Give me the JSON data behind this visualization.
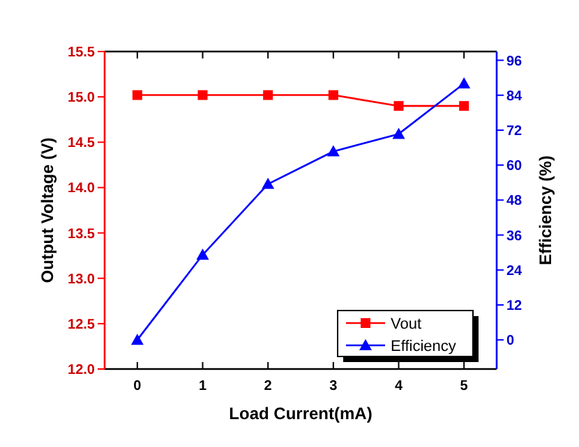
{
  "chart_data": {
    "type": "line",
    "xlabel": "Load Current(mA)",
    "ylabel": "Output Voltage (V)",
    "y2label": "Efficiency (%)",
    "x": [
      0,
      1,
      2,
      3,
      4,
      5
    ],
    "series": [
      {
        "name": "Vout",
        "color": "#ff0000",
        "marker": "square",
        "values": [
          15.02,
          15.02,
          15.02,
          15.02,
          14.9,
          14.9
        ]
      },
      {
        "name": "Efficiency",
        "color": "#0000ff",
        "marker": "triangle",
        "axis": "y2",
        "values": [
          0,
          29.2,
          53.5,
          64.7,
          70.7,
          88
        ]
      }
    ],
    "xlim": [
      -0.5,
      5.5
    ],
    "xticks": [
      0,
      1,
      2,
      3,
      4,
      5
    ],
    "ylim": [
      12.0,
      15.5
    ],
    "yticks": [
      {
        "value": 12,
        "label": "12.0"
      },
      {
        "value": 12.5,
        "label": "12.5"
      },
      {
        "value": 13,
        "label": "13.0"
      },
      {
        "value": 13.5,
        "label": "13.5"
      },
      {
        "value": 14,
        "label": "14.0"
      },
      {
        "value": 14.5,
        "label": "14.5"
      },
      {
        "value": 15,
        "label": "15.0"
      },
      {
        "value": 15.5,
        "label": "15.5"
      }
    ],
    "y2lim": [
      -10,
      99
    ],
    "y2ticks": [
      0,
      12,
      24,
      36,
      48,
      60,
      72,
      84,
      96
    ],
    "grid": false,
    "legend": "bottom right",
    "line_style": "solid"
  }
}
